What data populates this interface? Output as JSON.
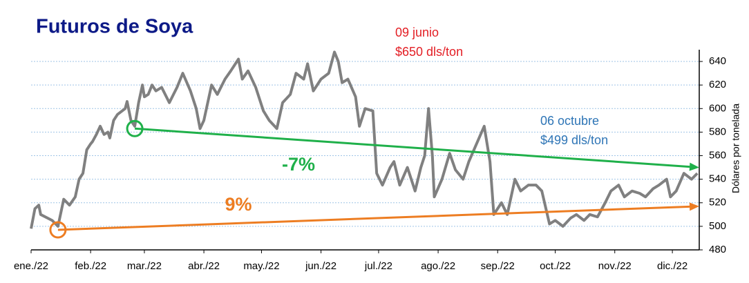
{
  "chart_data": {
    "type": "line",
    "title": "Futuros de Soya",
    "y_label": "Dólares por tonelada",
    "y_axis_side": "right",
    "grid": true,
    "xlim": [
      0,
      348
    ],
    "xticks": [
      {
        "value": 0,
        "label": "ene./22"
      },
      {
        "value": 31,
        "label": "feb./22"
      },
      {
        "value": 59,
        "label": "mar./22"
      },
      {
        "value": 90,
        "label": "abr./22"
      },
      {
        "value": 120,
        "label": "may./22"
      },
      {
        "value": 151,
        "label": "jun./22"
      },
      {
        "value": 181,
        "label": "jul./22"
      },
      {
        "value": 212,
        "label": "ago./22"
      },
      {
        "value": 243,
        "label": "sep./22"
      },
      {
        "value": 273,
        "label": "oct./22"
      },
      {
        "value": 304,
        "label": "nov./22"
      },
      {
        "value": 334,
        "label": "dic./22"
      }
    ],
    "ylim": [
      480,
      650
    ],
    "yticks": [
      480,
      500,
      520,
      540,
      560,
      580,
      600,
      620,
      640
    ],
    "x": [
      0,
      2,
      4,
      5,
      11,
      14,
      17,
      20,
      23,
      25,
      27,
      29,
      31,
      32,
      34,
      36,
      38,
      40,
      41,
      43,
      45,
      49,
      50,
      52,
      54,
      56,
      58,
      59,
      61,
      63,
      65,
      68,
      72,
      76,
      79,
      83,
      86,
      88,
      90,
      94,
      97,
      101,
      104,
      108,
      110,
      113,
      117,
      121,
      124,
      128,
      131,
      135,
      138,
      142,
      144,
      147,
      151,
      155,
      158,
      160,
      162,
      165,
      169,
      171,
      174,
      178,
      180,
      183,
      187,
      189,
      192,
      196,
      200,
      203,
      205,
      207,
      209,
      210,
      214,
      218,
      221,
      225,
      228,
      232,
      236,
      239,
      241,
      245,
      248,
      252,
      255,
      259,
      263,
      266,
      270,
      273,
      277,
      281,
      284,
      288,
      291,
      295,
      299,
      302,
      306,
      309,
      313,
      317,
      320,
      324,
      327,
      331,
      333,
      336,
      340,
      344,
      347
    ],
    "series": [
      {
        "color": "#808080",
        "values": [
          498,
          515,
          518,
          510,
          505,
          500,
          523,
          518,
          525,
          540,
          545,
          565,
          570,
          572,
          578,
          585,
          578,
          580,
          575,
          590,
          595,
          600,
          606,
          590,
          585,
          605,
          620,
          610,
          612,
          620,
          615,
          618,
          605,
          618,
          630,
          615,
          600,
          583,
          590,
          620,
          612,
          625,
          632,
          642,
          625,
          632,
          618,
          598,
          590,
          583,
          605,
          612,
          630,
          625,
          638,
          615,
          625,
          630,
          648,
          640,
          622,
          625,
          610,
          585,
          600,
          598,
          545,
          535,
          550,
          555,
          535,
          550,
          530,
          550,
          560,
          600,
          560,
          525,
          540,
          562,
          548,
          540,
          555,
          570,
          585,
          555,
          510,
          520,
          510,
          540,
          530,
          535,
          535,
          530,
          502,
          505,
          500,
          507,
          510,
          505,
          510,
          508,
          520,
          530,
          535,
          525,
          530,
          528,
          525,
          532,
          535,
          540,
          525,
          530,
          545,
          540,
          545
        ]
      }
    ],
    "trends": [
      {
        "color": "#1fb04a",
        "x": [
          54,
          348
        ],
        "y": [
          583,
          550
        ],
        "label": "-7%"
      },
      {
        "color": "#ed7d22",
        "x": [
          14,
          348
        ],
        "y": [
          497,
          517
        ],
        "label": "9%"
      }
    ],
    "annotations": [
      {
        "text": "09 junio",
        "color": "#e31e24"
      },
      {
        "text": "$650 dls/ton",
        "color": "#e31e24"
      },
      {
        "text": "06 octubre",
        "color": "#2e75b6"
      },
      {
        "text": "$499 dls/ton",
        "color": "#2e75b6"
      }
    ]
  }
}
